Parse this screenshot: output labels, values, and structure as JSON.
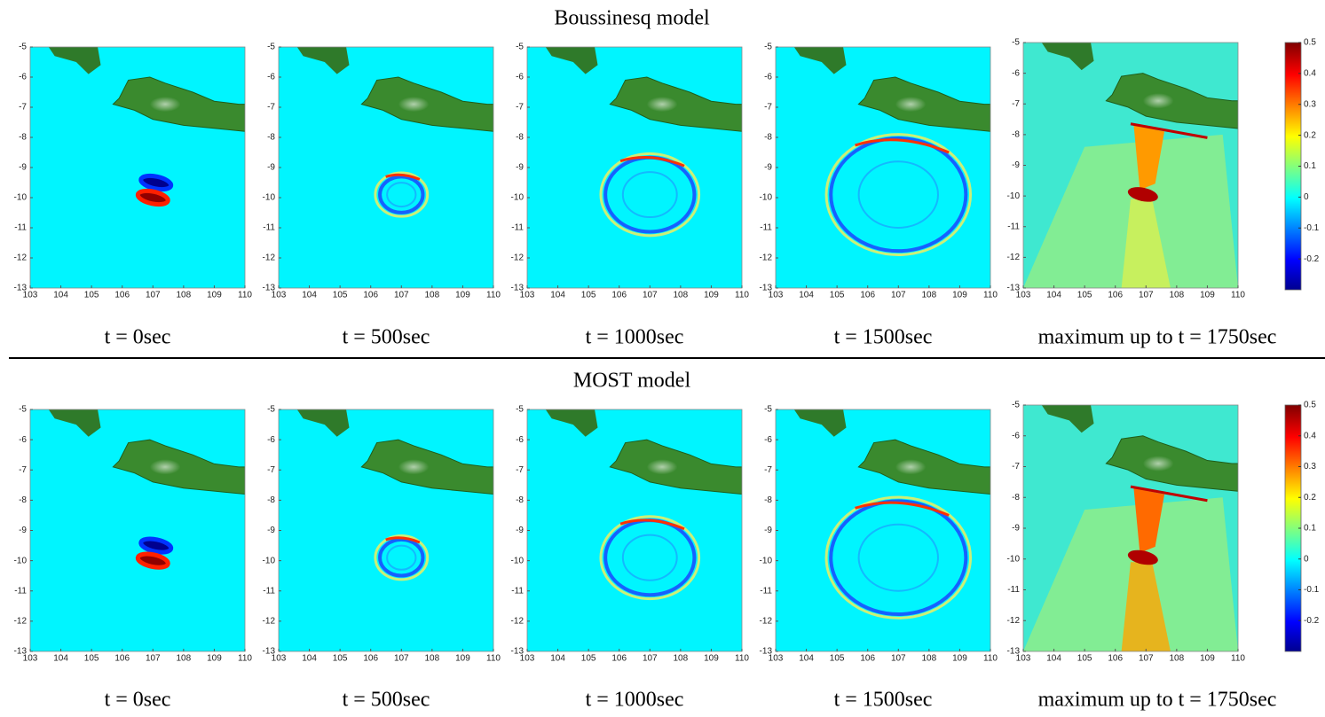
{
  "sections": [
    {
      "title": "Boussinesq model",
      "panels": [
        {
          "caption": "t = 0sec"
        },
        {
          "caption": "t = 500sec"
        },
        {
          "caption": "t = 1000sec"
        },
        {
          "caption": "t = 1500sec"
        },
        {
          "caption": "maximum up to t = 1750sec"
        }
      ]
    },
    {
      "title": "MOST model",
      "panels": [
        {
          "caption": "t = 0sec"
        },
        {
          "caption": "t = 500sec"
        },
        {
          "caption": "t = 1000sec"
        },
        {
          "caption": "t = 1500sec"
        },
        {
          "caption": "maximum up to t = 1750sec"
        }
      ]
    }
  ],
  "axes": {
    "xlim": [
      103,
      110
    ],
    "ylim": [
      -13,
      -5
    ],
    "xticks": [
      103,
      104,
      105,
      106,
      107,
      108,
      109,
      110
    ],
    "yticks": [
      -13,
      -12,
      -11,
      -10,
      -9,
      -8,
      -7,
      -6,
      -5
    ]
  },
  "colorbar": {
    "lim": [
      -0.3,
      0.5
    ],
    "ticks": [
      -0.2,
      -0.1,
      0,
      0.1,
      0.2,
      0.3,
      0.4,
      0.5
    ]
  }
}
